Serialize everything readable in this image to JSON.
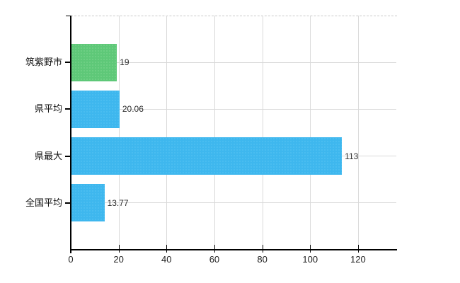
{
  "chart_data": {
    "type": "bar",
    "orientation": "horizontal",
    "title": "",
    "xlabel": "",
    "ylabel": "",
    "categories": [
      "筑紫野市",
      "県平均",
      "県最大",
      "全国平均"
    ],
    "values": [
      19,
      20.06,
      113,
      13.77
    ],
    "value_labels": [
      "19",
      "20.06",
      "113",
      "13.77"
    ],
    "bar_colors": [
      "#5ec878",
      "#3eb7ee",
      "#3eb7ee",
      "#3eb7ee"
    ],
    "xticks": [
      0,
      20,
      40,
      60,
      80,
      100,
      120
    ],
    "xtick_labels": [
      "0",
      "20",
      "40",
      "60",
      "80",
      "100",
      "120"
    ],
    "xlim": [
      0,
      136
    ],
    "grid": true,
    "legend": "none"
  },
  "colors": {
    "background": "#ffffff",
    "axis": "#000000",
    "grid": "#d9d9d9",
    "plot_top_border": "#c9c9c9",
    "text": "#111111",
    "bar_green": "#5ec878",
    "bar_blue": "#3eb7ee"
  }
}
